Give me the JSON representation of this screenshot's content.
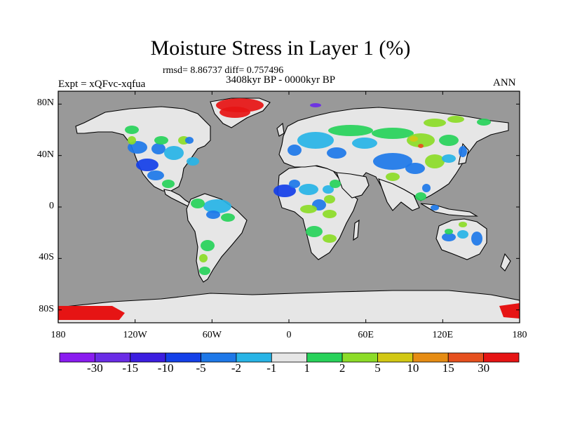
{
  "title": "Moisture Stress in Layer 1 (%)",
  "stats_line": "rmsd= 8.86737 diff= 0.757496",
  "period": "3408kyr BP - 0000kyr BP",
  "experiment": "Expt = xQFvc-xqfua",
  "season": "ANN",
  "map": {
    "projection": "cylindrical-equidistant",
    "lon_range": [
      -180,
      180
    ],
    "lat_range": [
      -90,
      90
    ],
    "ocean_color": "#999999",
    "coast_color": "#000000",
    "lon_ticks": [
      {
        "value": -180,
        "label": "180"
      },
      {
        "value": -120,
        "label": "120W"
      },
      {
        "value": -60,
        "label": "60W"
      },
      {
        "value": 0,
        "label": "0"
      },
      {
        "value": 60,
        "label": "60E"
      },
      {
        "value": 120,
        "label": "120E"
      },
      {
        "value": 180,
        "label": "180"
      }
    ],
    "lat_ticks": [
      {
        "value": 80,
        "label": "80N"
      },
      {
        "value": 40,
        "label": "40N"
      },
      {
        "value": 0,
        "label": "0"
      },
      {
        "value": -40,
        "label": "40S"
      },
      {
        "value": -80,
        "label": "80S"
      }
    ]
  },
  "colorbar": {
    "colors": [
      "#8a1cf0",
      "#6a2ce6",
      "#3c1ee0",
      "#1440e8",
      "#1e78e8",
      "#28b4e6",
      "#e6e6e6",
      "#28d25a",
      "#8cdc28",
      "#d2c814",
      "#e68c14",
      "#e6501e",
      "#e61414"
    ],
    "labels": [
      "-30",
      "-15",
      "-10",
      "-5",
      "-2",
      "-1",
      "1",
      "2",
      "5",
      "10",
      "15",
      "30"
    ]
  }
}
